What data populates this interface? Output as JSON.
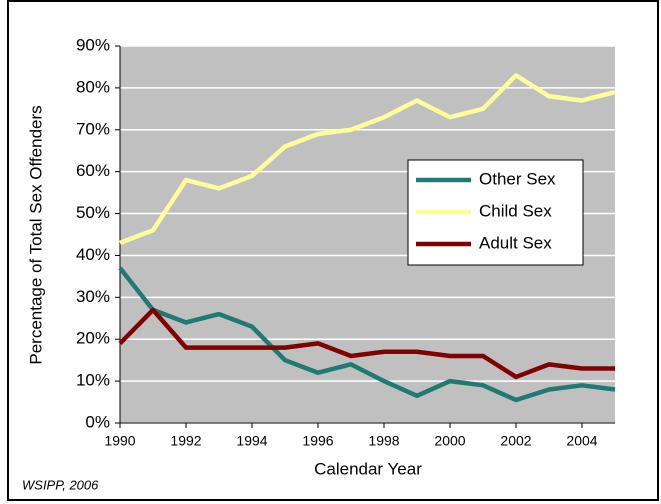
{
  "chart_data": {
    "type": "line",
    "y_label": "Percentage of Total Sex Offenders",
    "x_label": "Calendar Year",
    "source": "WSIPP, 2006",
    "x": [
      1990,
      1991,
      1992,
      1993,
      1994,
      1995,
      1996,
      1997,
      1998,
      1999,
      2000,
      2001,
      2002,
      2003,
      2004,
      2005
    ],
    "series": [
      {
        "name": "Other Sex",
        "color": "#1f7a72",
        "values": [
          37,
          27,
          24,
          26,
          23,
          15,
          12,
          14,
          10,
          6.5,
          10,
          9,
          5.5,
          8,
          9,
          8
        ]
      },
      {
        "name": "Child Sex",
        "color": "#ffff99",
        "values": [
          43,
          46,
          58,
          56,
          59,
          66,
          69,
          70,
          73,
          77,
          73,
          75,
          83,
          78,
          77,
          79
        ]
      },
      {
        "name": "Adult Sex",
        "color": "#800000",
        "values": [
          19,
          27,
          18,
          18,
          18,
          18,
          19,
          16,
          17,
          17,
          16,
          16,
          11,
          14,
          13,
          13
        ]
      }
    ],
    "xlim": [
      1990,
      2005
    ],
    "xticks": [
      1990,
      1992,
      1994,
      1996,
      1998,
      2000,
      2002,
      2004
    ],
    "ylim": [
      0,
      90
    ],
    "yticks": [
      {
        "value": 0,
        "label": "0%"
      },
      {
        "value": 10,
        "label": "10%"
      },
      {
        "value": 20,
        "label": "20%"
      },
      {
        "value": 30,
        "label": "30%"
      },
      {
        "value": 40,
        "label": "40%"
      },
      {
        "value": 50,
        "label": "50%"
      },
      {
        "value": 60,
        "label": "60%"
      },
      {
        "value": 70,
        "label": "70%"
      },
      {
        "value": 80,
        "label": "80%"
      },
      {
        "value": 90,
        "label": "90%"
      }
    ],
    "grid": true,
    "plot_background": "#c0c0c0"
  }
}
